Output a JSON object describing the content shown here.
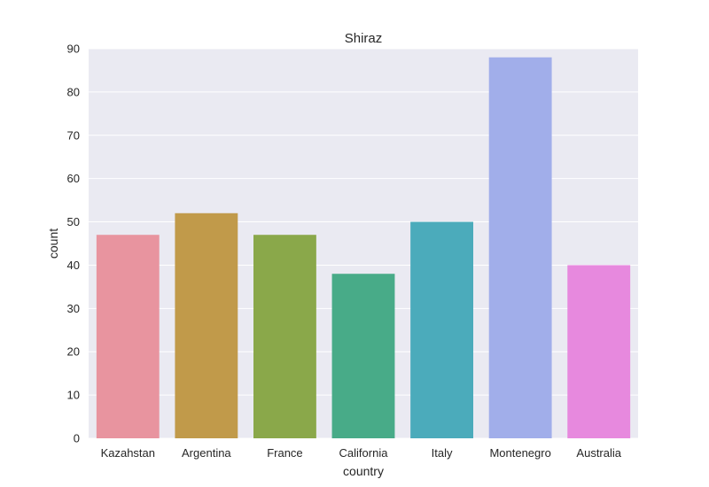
{
  "chart_data": {
    "type": "bar",
    "title": "Shiraz",
    "xlabel": "country",
    "ylabel": "count",
    "categories": [
      "Kazahstan",
      "Argentina",
      "France",
      "California",
      "Italy",
      "Montenegro",
      "Australia"
    ],
    "values": [
      47,
      52,
      47,
      38,
      50,
      88,
      40
    ],
    "colors": [
      "#E8949F",
      "#C19A4A",
      "#8AA84A",
      "#48AB88",
      "#4BABBB",
      "#A1AEEA",
      "#E789DE"
    ],
    "ylim": [
      0,
      90
    ],
    "yticks": [
      0,
      10,
      20,
      30,
      40,
      50,
      60,
      70,
      80,
      90
    ],
    "grid": true,
    "background": "#EAEAF2"
  }
}
